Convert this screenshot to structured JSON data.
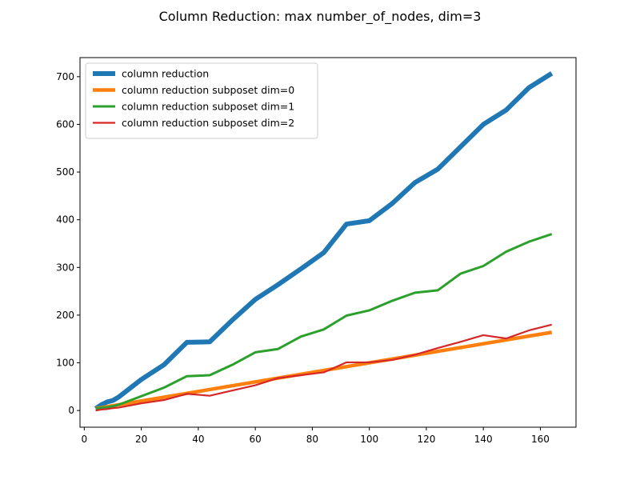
{
  "chart_data": {
    "type": "line",
    "title": "Column Reduction: max number_of_nodes, dim=3",
    "xlabel": "",
    "ylabel": "",
    "xlim": [
      -1.5,
      172.5
    ],
    "ylim": [
      -35,
      740
    ],
    "xticks": [
      0,
      20,
      40,
      60,
      80,
      100,
      120,
      140,
      160
    ],
    "yticks": [
      0,
      100,
      200,
      300,
      400,
      500,
      600,
      700
    ],
    "grid": false,
    "legend_position": "upper-left",
    "series": [
      {
        "name": "column reduction",
        "color": "#1f77b4",
        "width": "thick",
        "x": [
          4,
          6,
          8,
          10,
          12,
          20,
          28,
          36,
          44,
          52,
          60,
          68,
          76,
          84,
          92,
          100,
          108,
          116,
          124,
          132,
          140,
          148,
          156,
          164
        ],
        "y": [
          4,
          12,
          18,
          21,
          28,
          65,
          96,
          143,
          144,
          190,
          233,
          264,
          297,
          331,
          391,
          398,
          434,
          478,
          506,
          553,
          600,
          630,
          677,
          707
        ]
      },
      {
        "name": "column reduction subposet dim=0",
        "color": "#ff7f0e",
        "width": "medium-thick",
        "x": [
          4,
          164
        ],
        "y": [
          4,
          164
        ]
      },
      {
        "name": "column reduction subposet dim=1",
        "color": "#2ca02c",
        "width": "medium",
        "x": [
          4,
          6,
          8,
          10,
          12,
          20,
          28,
          36,
          44,
          52,
          60,
          68,
          76,
          84,
          92,
          100,
          108,
          116,
          124,
          132,
          140,
          148,
          156,
          164
        ],
        "y": [
          4,
          6,
          7,
          9,
          12,
          30,
          48,
          72,
          74,
          96,
          122,
          129,
          155,
          170,
          199,
          210,
          230,
          247,
          252,
          287,
          303,
          333,
          354,
          370
        ]
      },
      {
        "name": "column reduction subposet dim=2",
        "color": "#d62728",
        "width": "thin",
        "x": [
          4,
          6,
          8,
          10,
          12,
          20,
          28,
          36,
          44,
          52,
          60,
          68,
          76,
          84,
          92,
          100,
          108,
          116,
          124,
          132,
          140,
          148,
          156,
          164
        ],
        "y": [
          0,
          2,
          3,
          5,
          6,
          15,
          22,
          35,
          31,
          42,
          53,
          68,
          74,
          80,
          101,
          101,
          106,
          117,
          131,
          144,
          158,
          151,
          168,
          180
        ]
      }
    ]
  }
}
